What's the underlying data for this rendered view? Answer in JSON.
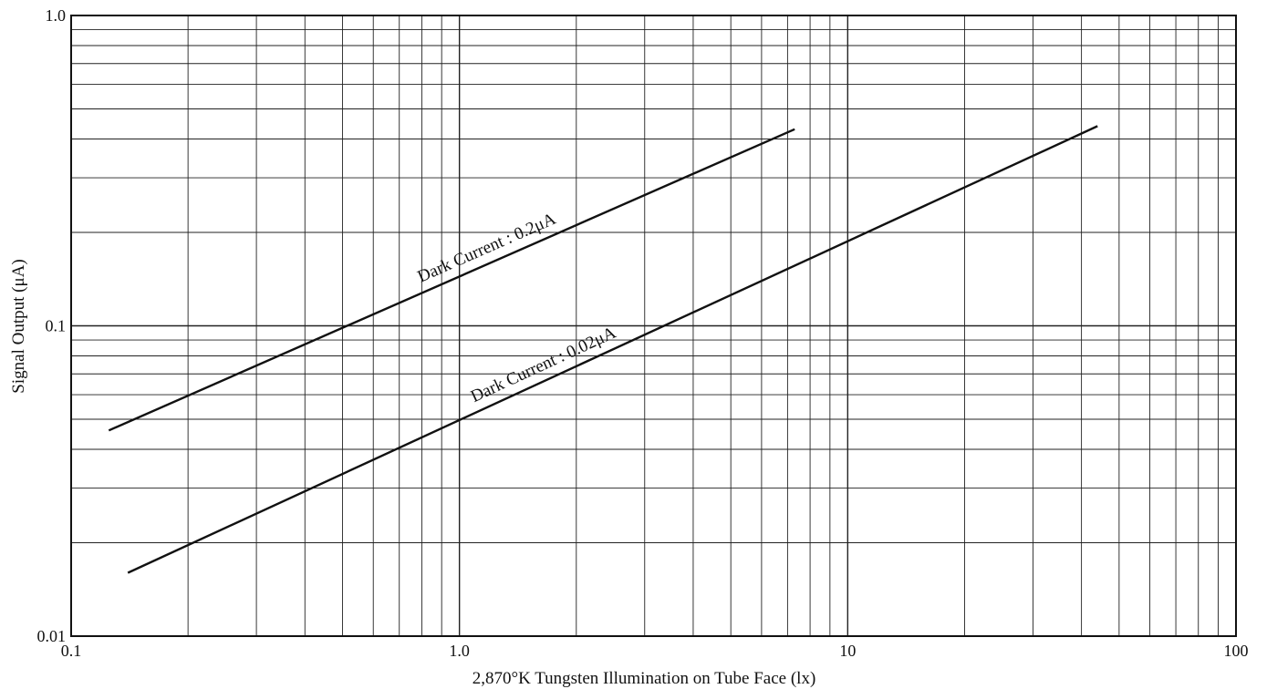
{
  "chart_data": {
    "type": "line",
    "title": "",
    "xlabel": "2,870°K Tungsten Illumination on Tube Face (lx)",
    "ylabel": "Signal Output (μA)",
    "x_scale": "log",
    "y_scale": "log",
    "xlim": [
      0.1,
      100
    ],
    "ylim": [
      0.01,
      1.0
    ],
    "grid": true,
    "x_tick_labels": [
      {
        "value": 0.1,
        "label": "0.1"
      },
      {
        "value": 1,
        "label": "1.0"
      },
      {
        "value": 10,
        "label": "10"
      },
      {
        "value": 100,
        "label": "100"
      }
    ],
    "y_tick_labels": [
      {
        "value": 0.01,
        "label": "0.01"
      },
      {
        "value": 0.1,
        "label": "0.1"
      },
      {
        "value": 1.0,
        "label": "1.0"
      }
    ],
    "series": [
      {
        "name": "Dark Current : 0.2μA",
        "x": [
          0.125,
          7.3
        ],
        "y": [
          0.046,
          0.43
        ]
      },
      {
        "name": "Dark Current : 0.02μA",
        "x": [
          0.14,
          44
        ],
        "y": [
          0.016,
          0.44
        ]
      }
    ],
    "colors": {
      "line": "#111111",
      "grid": "#222222",
      "background": "#ffffff"
    }
  }
}
